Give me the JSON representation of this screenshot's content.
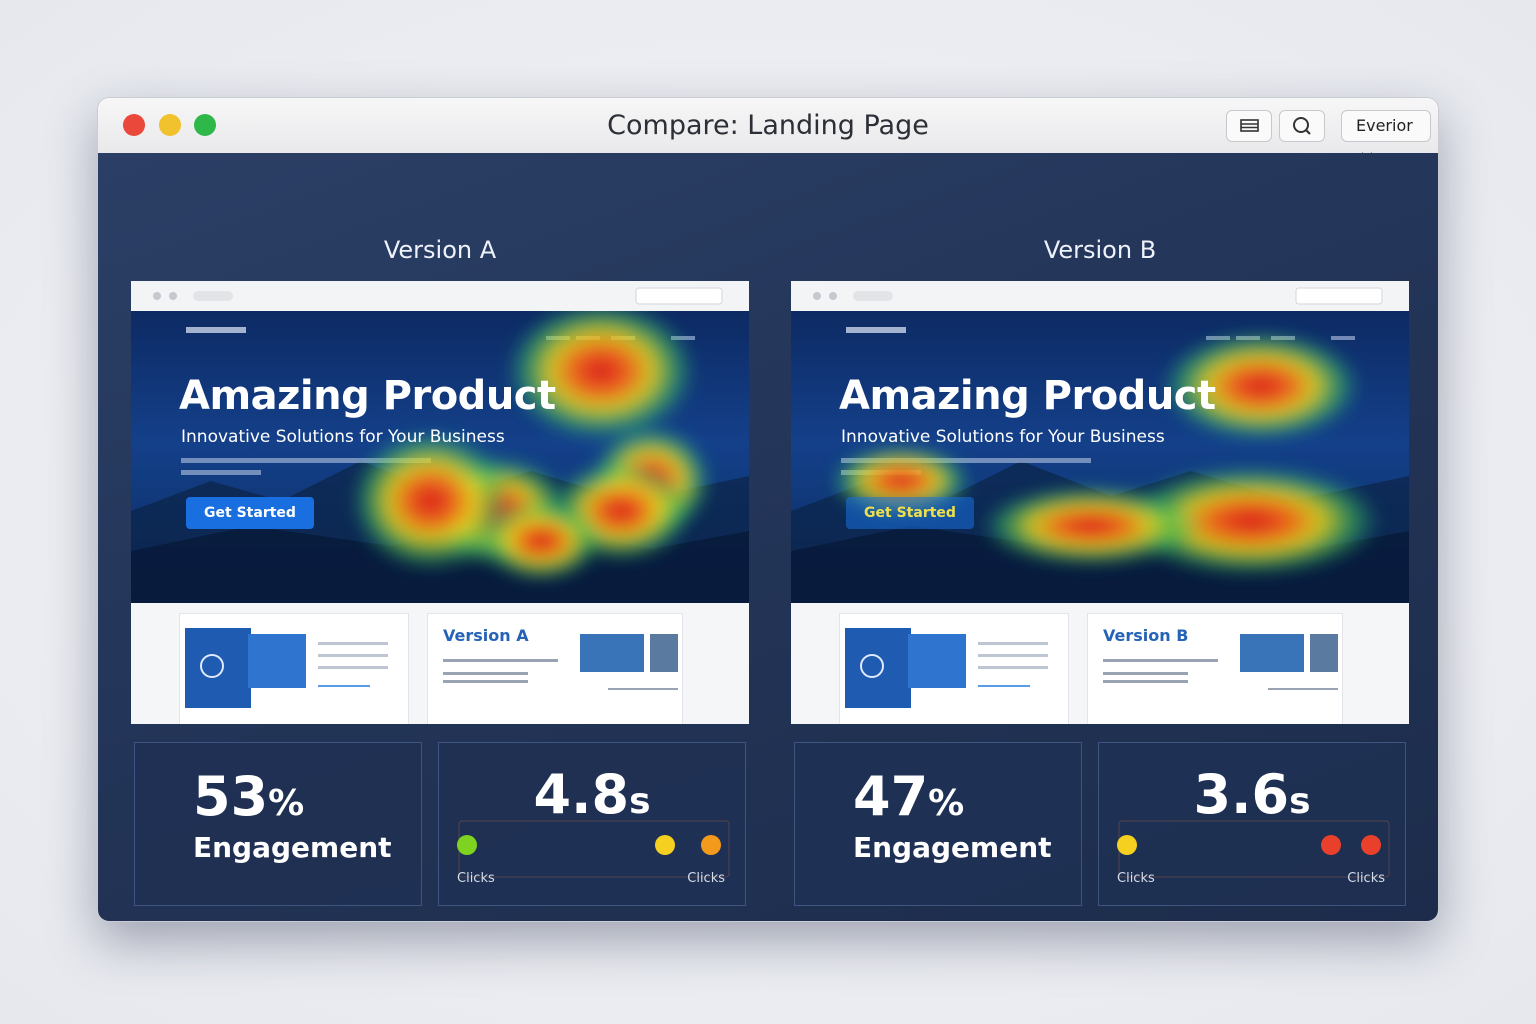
{
  "window": {
    "title": "Compare: Landing Page",
    "account": "Everior"
  },
  "panels": [
    {
      "label": "Version A",
      "hero": {
        "title": "Amazing Product",
        "subtitle": "Innovative Solutions for Your Business",
        "button": "Get Started"
      },
      "card": {
        "title": "Version A"
      },
      "stats": {
        "engagement": {
          "value": 53,
          "unit": "%",
          "label": "Engagement"
        },
        "time": {
          "value": 4.8,
          "unit": "s",
          "left": "Clicks",
          "right": "Clicks"
        }
      }
    },
    {
      "label": "Version B",
      "hero": {
        "title": "Amazing Product",
        "subtitle": "Innovative Solutions for Your Business",
        "button": "Get Started"
      },
      "card": {
        "title": "Version B"
      },
      "stats": {
        "engagement": {
          "value": 47,
          "unit": "%",
          "label": "Engagement"
        },
        "time": {
          "value": 3.6,
          "unit": "s",
          "left": "Clicks",
          "right": "Clicks"
        }
      }
    }
  ]
}
